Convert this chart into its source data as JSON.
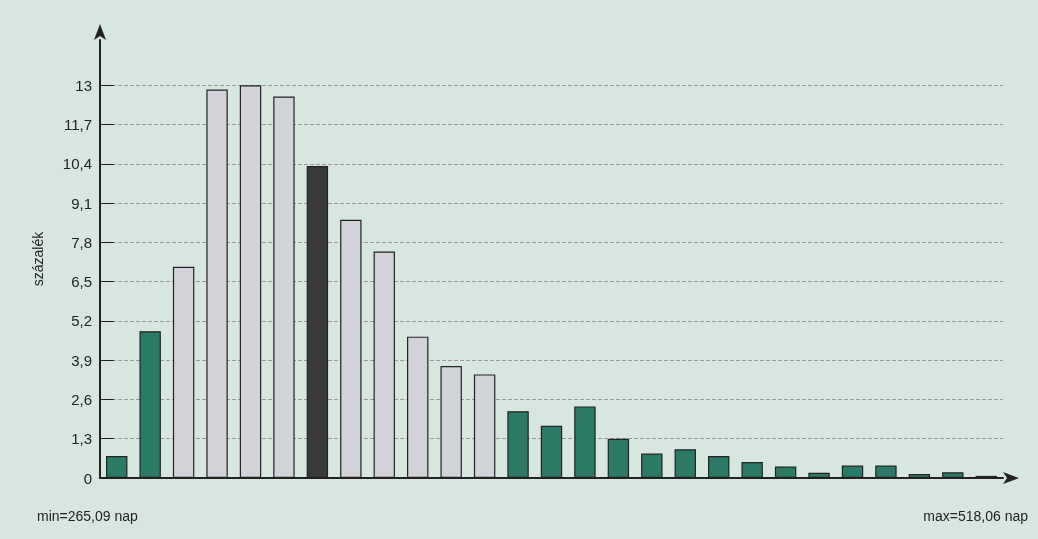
{
  "chart_data": {
    "type": "bar",
    "ylabel": "százalék",
    "categories": [
      null,
      null,
      null,
      null,
      null,
      null,
      null,
      null,
      null,
      null,
      null,
      null,
      null,
      null,
      null,
      null,
      null,
      null,
      null,
      null,
      null,
      null,
      null,
      null,
      null,
      null,
      null
    ],
    "values": [
      0.73,
      4.86,
      6.99,
      12.86,
      13.0,
      12.63,
      10.33,
      8.55,
      7.5,
      4.68,
      3.71,
      3.43,
      2.21,
      1.73,
      2.37,
      1.3,
      0.81,
      0.95,
      0.73,
      0.53,
      0.38,
      0.17,
      0.41,
      0.41,
      0.13,
      0.19,
      0.07
    ],
    "colors": [
      "#2b7a66",
      "#2b7a66",
      "#d2d3d8",
      "#d2d3d8",
      "#d2d3d8",
      "#d2d3d8",
      "#3a3a3c",
      "#d2d3d8",
      "#d2d3d8",
      "#d2d3d8",
      "#d2d3d8",
      "#d2d3d8",
      "#2b7a66",
      "#2b7a66",
      "#2b7a66",
      "#2b7a66",
      "#2b7a66",
      "#2b7a66",
      "#2b7a66",
      "#2b7a66",
      "#2b7a66",
      "#2b7a66",
      "#2b7a66",
      "#2b7a66",
      "#2b7a66",
      "#2b7a66",
      "#2b7a66"
    ],
    "ylim": [
      0,
      14.5
    ],
    "yticks": [
      0,
      {
        "value": 1.3,
        "label": "1,3"
      },
      {
        "value": 2.6,
        "label": "2,6"
      },
      {
        "value": 3.9,
        "label": "3,9"
      },
      {
        "value": 5.2,
        "label": "5,2"
      },
      {
        "value": 6.5,
        "label": "6,5"
      },
      {
        "value": 7.8,
        "label": "7,8"
      },
      {
        "value": 9.1,
        "label": "9,1"
      },
      {
        "value": 10.4,
        "label": "10,4"
      },
      {
        "value": 11.7,
        "label": "11,7"
      },
      13
    ],
    "grid": "y",
    "annotations": [
      "min=265,09 nap",
      "max=518,06 nap"
    ]
  }
}
